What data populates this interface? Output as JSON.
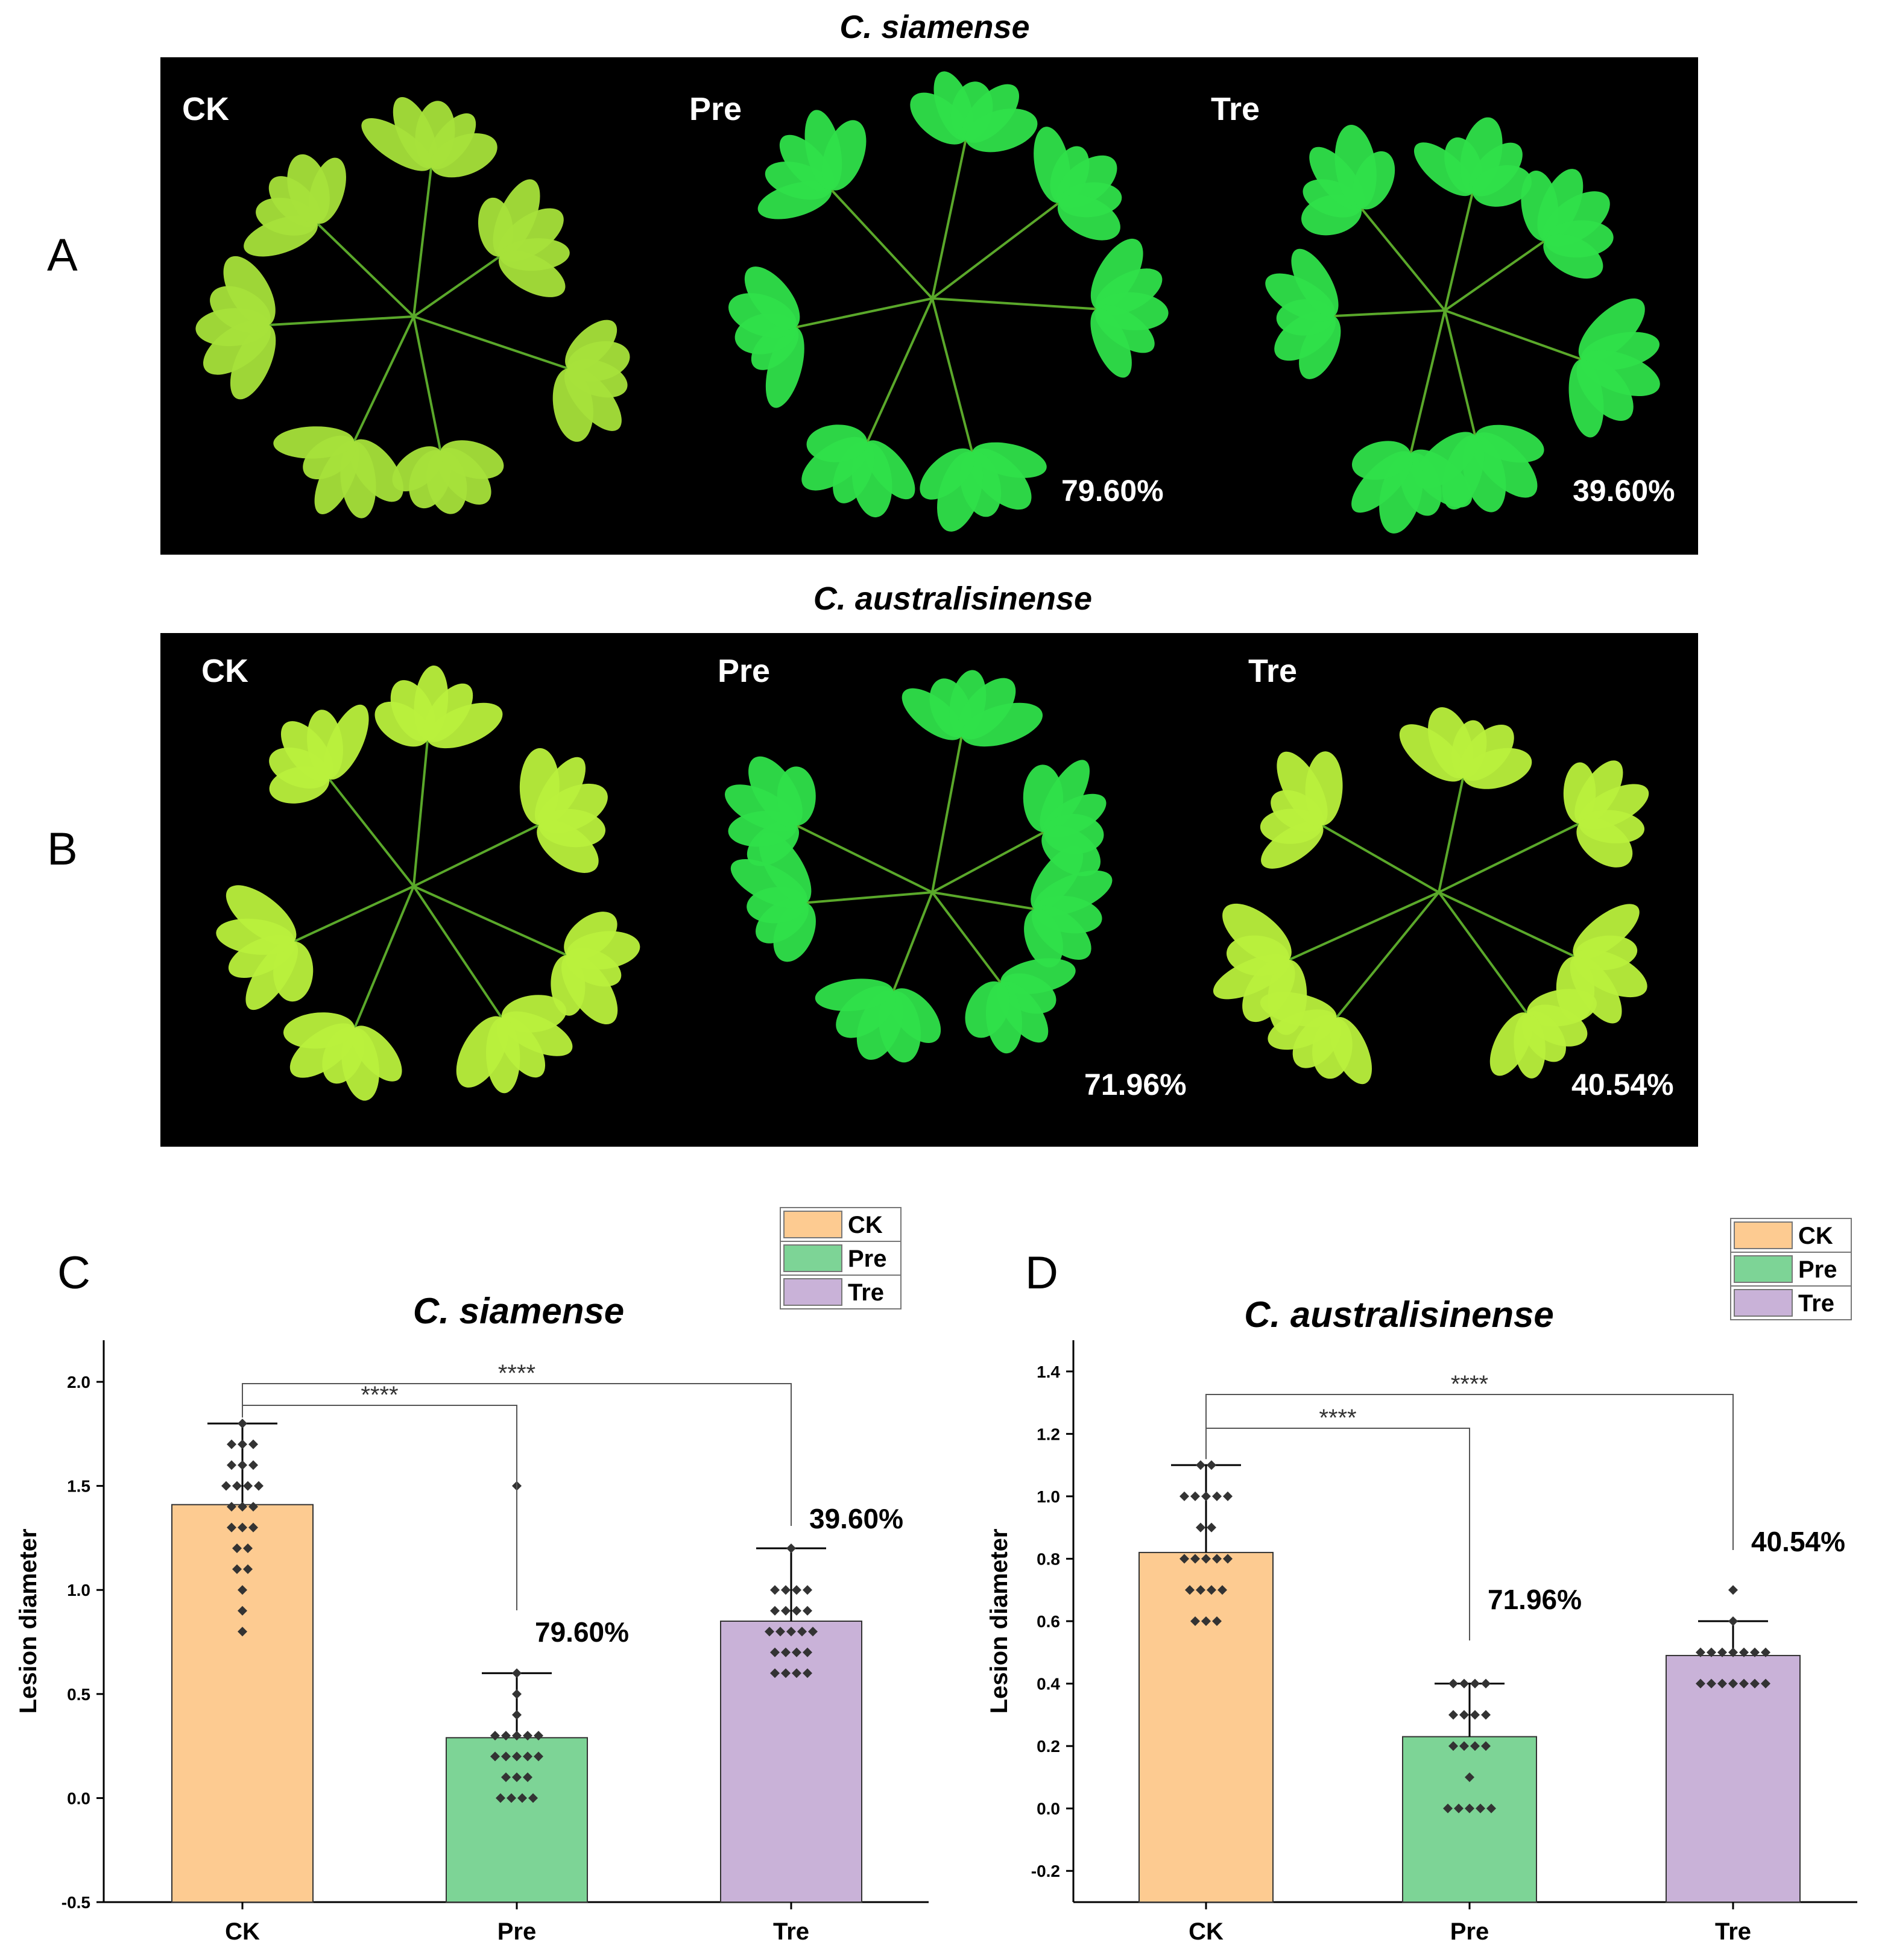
{
  "panels": {
    "A": {
      "letter": "A",
      "title": "C. siamense",
      "photos": [
        {
          "label": "CK",
          "pct": ""
        },
        {
          "label": "Pre",
          "pct": "79.60%"
        },
        {
          "label": "Tre",
          "pct": "39.60%"
        }
      ]
    },
    "B": {
      "letter": "B",
      "title": "C. australisinense",
      "photos": [
        {
          "label": "CK",
          "pct": ""
        },
        {
          "label": "Pre",
          "pct": "71.96%"
        },
        {
          "label": "Tre",
          "pct": "40.54%"
        }
      ]
    }
  },
  "colors": {
    "CK": "#fdcb91",
    "Pre": "#7dd496",
    "Tre": "#c9b2d8",
    "photo_bg": "#000000",
    "leaf_ck": "#a6e23a",
    "leaf_pre": "#2fe04a",
    "leaf_tre": "#b9f03c"
  },
  "chart_data": [
    {
      "panel": "C",
      "type": "bar",
      "title": "C. siamense",
      "ylabel": "Lesion diameter",
      "xlabel": "",
      "categories": [
        "CK",
        "Pre",
        "Tre"
      ],
      "values": [
        1.41,
        0.29,
        0.85
      ],
      "error_top": [
        1.8,
        0.6,
        1.2
      ],
      "ylim": [
        -0.5,
        2.2
      ],
      "yticks": [
        "-0.5",
        "0.0",
        "0.5",
        "1.0",
        "1.5",
        "2.0"
      ],
      "legend": [
        "CK",
        "Pre",
        "Tre"
      ],
      "legend_position": "top-right",
      "bar_labels": [
        "",
        "79.60%",
        "39.60%"
      ],
      "significance": [
        {
          "from": "CK",
          "to": "Pre",
          "label": "****"
        },
        {
          "from": "CK",
          "to": "Tre",
          "label": "****"
        }
      ],
      "points": [
        [
          1.8,
          1.7,
          1.7,
          1.7,
          1.6,
          1.6,
          1.6,
          1.5,
          1.5,
          1.5,
          1.5,
          1.4,
          1.4,
          1.4,
          1.3,
          1.3,
          1.3,
          1.2,
          1.2,
          1.1,
          1.1,
          1.0,
          0.9,
          0.8
        ],
        [
          1.5,
          0.6,
          0.5,
          0.4,
          0.3,
          0.3,
          0.3,
          0.3,
          0.3,
          0.2,
          0.2,
          0.2,
          0.2,
          0.2,
          0.1,
          0.1,
          0.1,
          0.0,
          0.0,
          0.0,
          0.0
        ],
        [
          1.2,
          1.0,
          1.0,
          1.0,
          1.0,
          0.9,
          0.9,
          0.9,
          0.9,
          0.8,
          0.8,
          0.8,
          0.8,
          0.8,
          0.7,
          0.7,
          0.7,
          0.7,
          0.6,
          0.6,
          0.6,
          0.6
        ]
      ]
    },
    {
      "panel": "D",
      "type": "bar",
      "title": "C. australisinense",
      "ylabel": "Lesion diameter",
      "xlabel": "",
      "categories": [
        "CK",
        "Pre",
        "Tre"
      ],
      "values": [
        0.82,
        0.23,
        0.49
      ],
      "error_top": [
        1.1,
        0.4,
        0.6
      ],
      "ylim": [
        -0.3,
        1.5
      ],
      "yticks": [
        "-0.2",
        "0.0",
        "0.2",
        "0.4",
        "0.6",
        "0.8",
        "1.0",
        "1.2",
        "1.4"
      ],
      "legend": [
        "CK",
        "Pre",
        "Tre"
      ],
      "legend_position": "top-right",
      "bar_labels": [
        "",
        "71.96%",
        "40.54%"
      ],
      "significance": [
        {
          "from": "CK",
          "to": "Pre",
          "label": "****"
        },
        {
          "from": "CK",
          "to": "Tre",
          "label": "****"
        }
      ],
      "points": [
        [
          1.1,
          1.1,
          1.0,
          1.0,
          1.0,
          1.0,
          1.0,
          0.9,
          0.9,
          0.8,
          0.8,
          0.8,
          0.8,
          0.8,
          0.7,
          0.7,
          0.7,
          0.7,
          0.6,
          0.6,
          0.6
        ],
        [
          0.4,
          0.4,
          0.4,
          0.4,
          0.3,
          0.3,
          0.3,
          0.3,
          0.2,
          0.2,
          0.2,
          0.2,
          0.1,
          0.0,
          0.0,
          0.0,
          0.0,
          0.0
        ],
        [
          0.7,
          0.6,
          0.5,
          0.5,
          0.5,
          0.5,
          0.5,
          0.5,
          0.5,
          0.4,
          0.4,
          0.4,
          0.4,
          0.4,
          0.4,
          0.4
        ]
      ]
    }
  ]
}
